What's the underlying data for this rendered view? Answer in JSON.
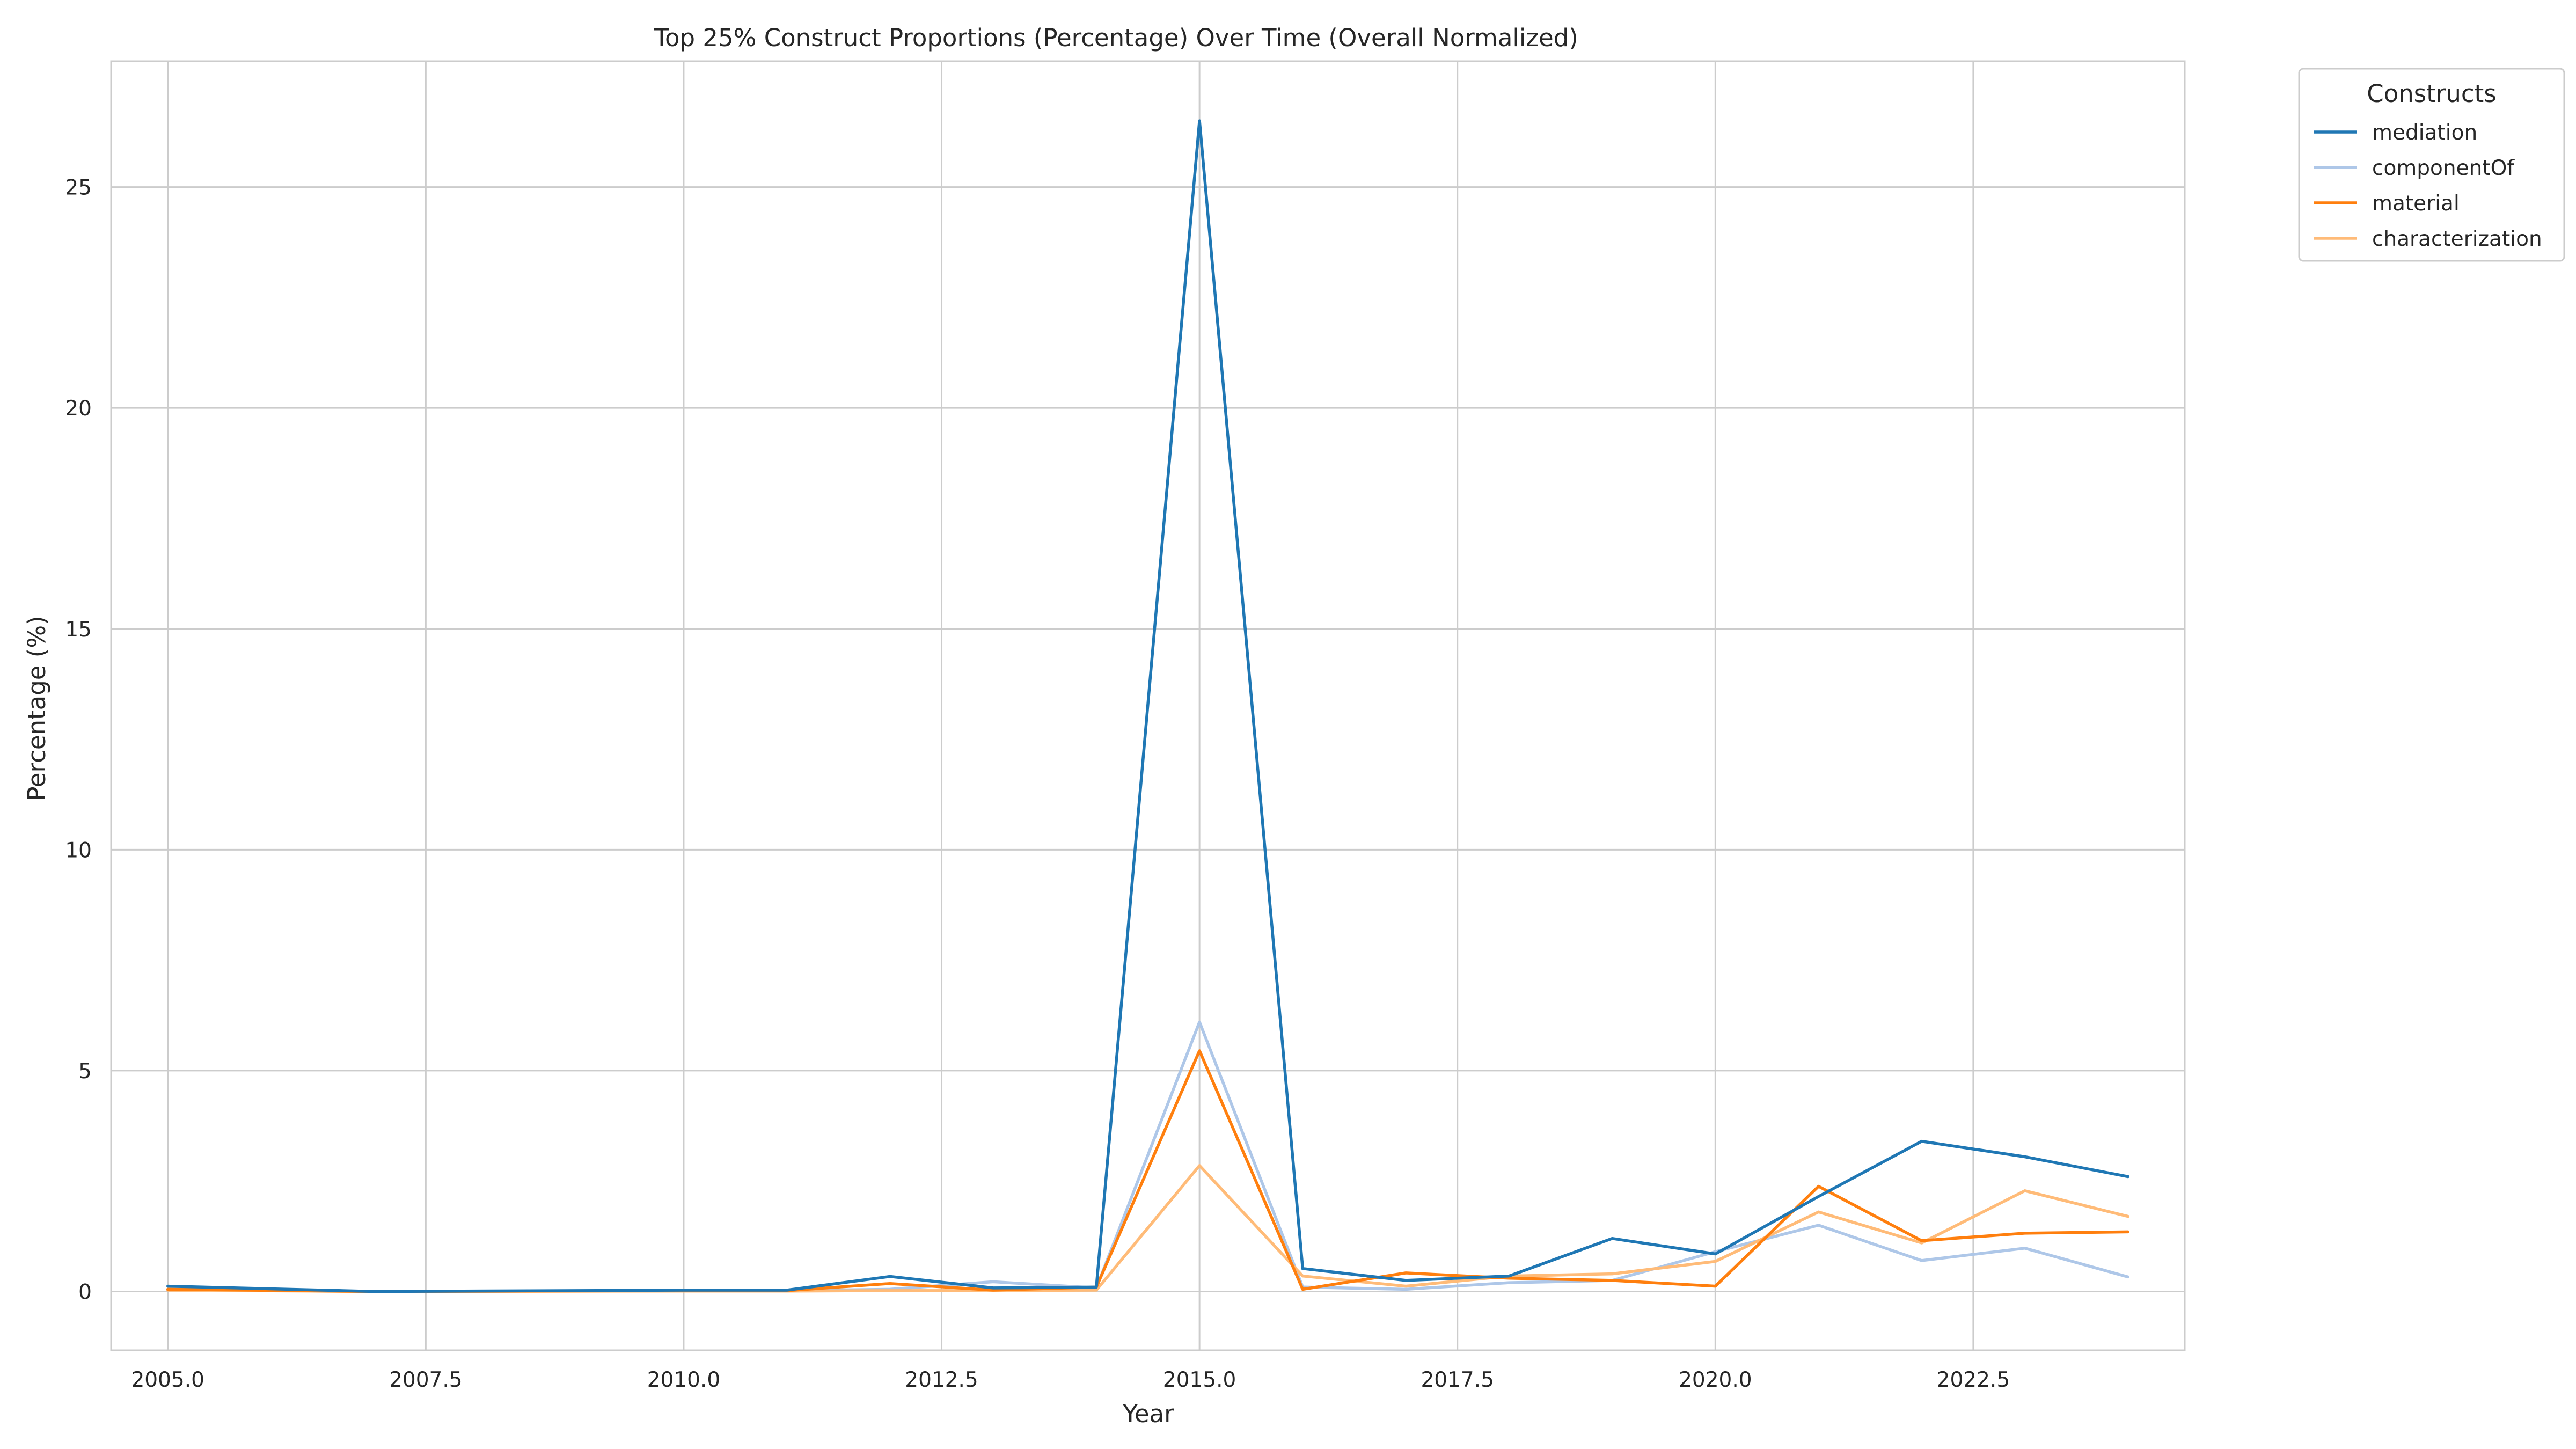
{
  "chart_data": {
    "type": "line",
    "title": "Top 25% Construct Proportions (Percentage) Over Time (Overall Normalized)",
    "xlabel": "Year",
    "ylabel": "Percentage (%)",
    "xlim": [
      2004.45,
      2024.55
    ],
    "ylim": [
      -1.33,
      27.85
    ],
    "x_ticks": [
      2005.0,
      2007.5,
      2010.0,
      2012.5,
      2015.0,
      2017.5,
      2020.0,
      2022.5
    ],
    "x_tick_labels": [
      "2005.0",
      "2007.5",
      "2010.0",
      "2012.5",
      "2015.0",
      "2017.5",
      "2020.0",
      "2022.5"
    ],
    "y_ticks": [
      0,
      5,
      10,
      15,
      20,
      25
    ],
    "y_tick_labels": [
      "0",
      "5",
      "10",
      "15",
      "20",
      "25"
    ],
    "grid": true,
    "legend": {
      "title": "Constructs",
      "placement": "outside upper right"
    },
    "x": [
      2005,
      2007,
      2010,
      2011,
      2012,
      2013,
      2014,
      2015,
      2016,
      2017,
      2018,
      2019,
      2020,
      2021,
      2022,
      2023,
      2024
    ],
    "series": [
      {
        "name": "mediation",
        "color": "#1f77b4",
        "values": [
          0.12,
          0.0,
          0.03,
          0.03,
          0.34,
          0.08,
          0.1,
          26.5,
          0.52,
          0.25,
          0.35,
          1.2,
          0.85,
          2.15,
          3.4,
          3.05,
          2.6
        ]
      },
      {
        "name": "componentOf",
        "color": "#aec7e8",
        "values": [
          0.05,
          0.0,
          0.02,
          0.02,
          0.05,
          0.22,
          0.08,
          6.1,
          0.1,
          0.05,
          0.2,
          0.25,
          0.9,
          1.5,
          0.7,
          0.98,
          0.33
        ]
      },
      {
        "name": "material",
        "color": "#ff7f0e",
        "values": [
          0.05,
          0.0,
          0.02,
          0.02,
          0.18,
          0.03,
          0.1,
          5.45,
          0.05,
          0.42,
          0.3,
          0.25,
          0.12,
          2.38,
          1.15,
          1.32,
          1.35
        ]
      },
      {
        "name": "characterization",
        "color": "#ffbb78",
        "values": [
          0.03,
          0.0,
          0.01,
          0.01,
          0.02,
          0.02,
          0.03,
          2.85,
          0.35,
          0.12,
          0.35,
          0.4,
          0.68,
          1.8,
          1.1,
          2.28,
          1.7
        ]
      }
    ]
  }
}
